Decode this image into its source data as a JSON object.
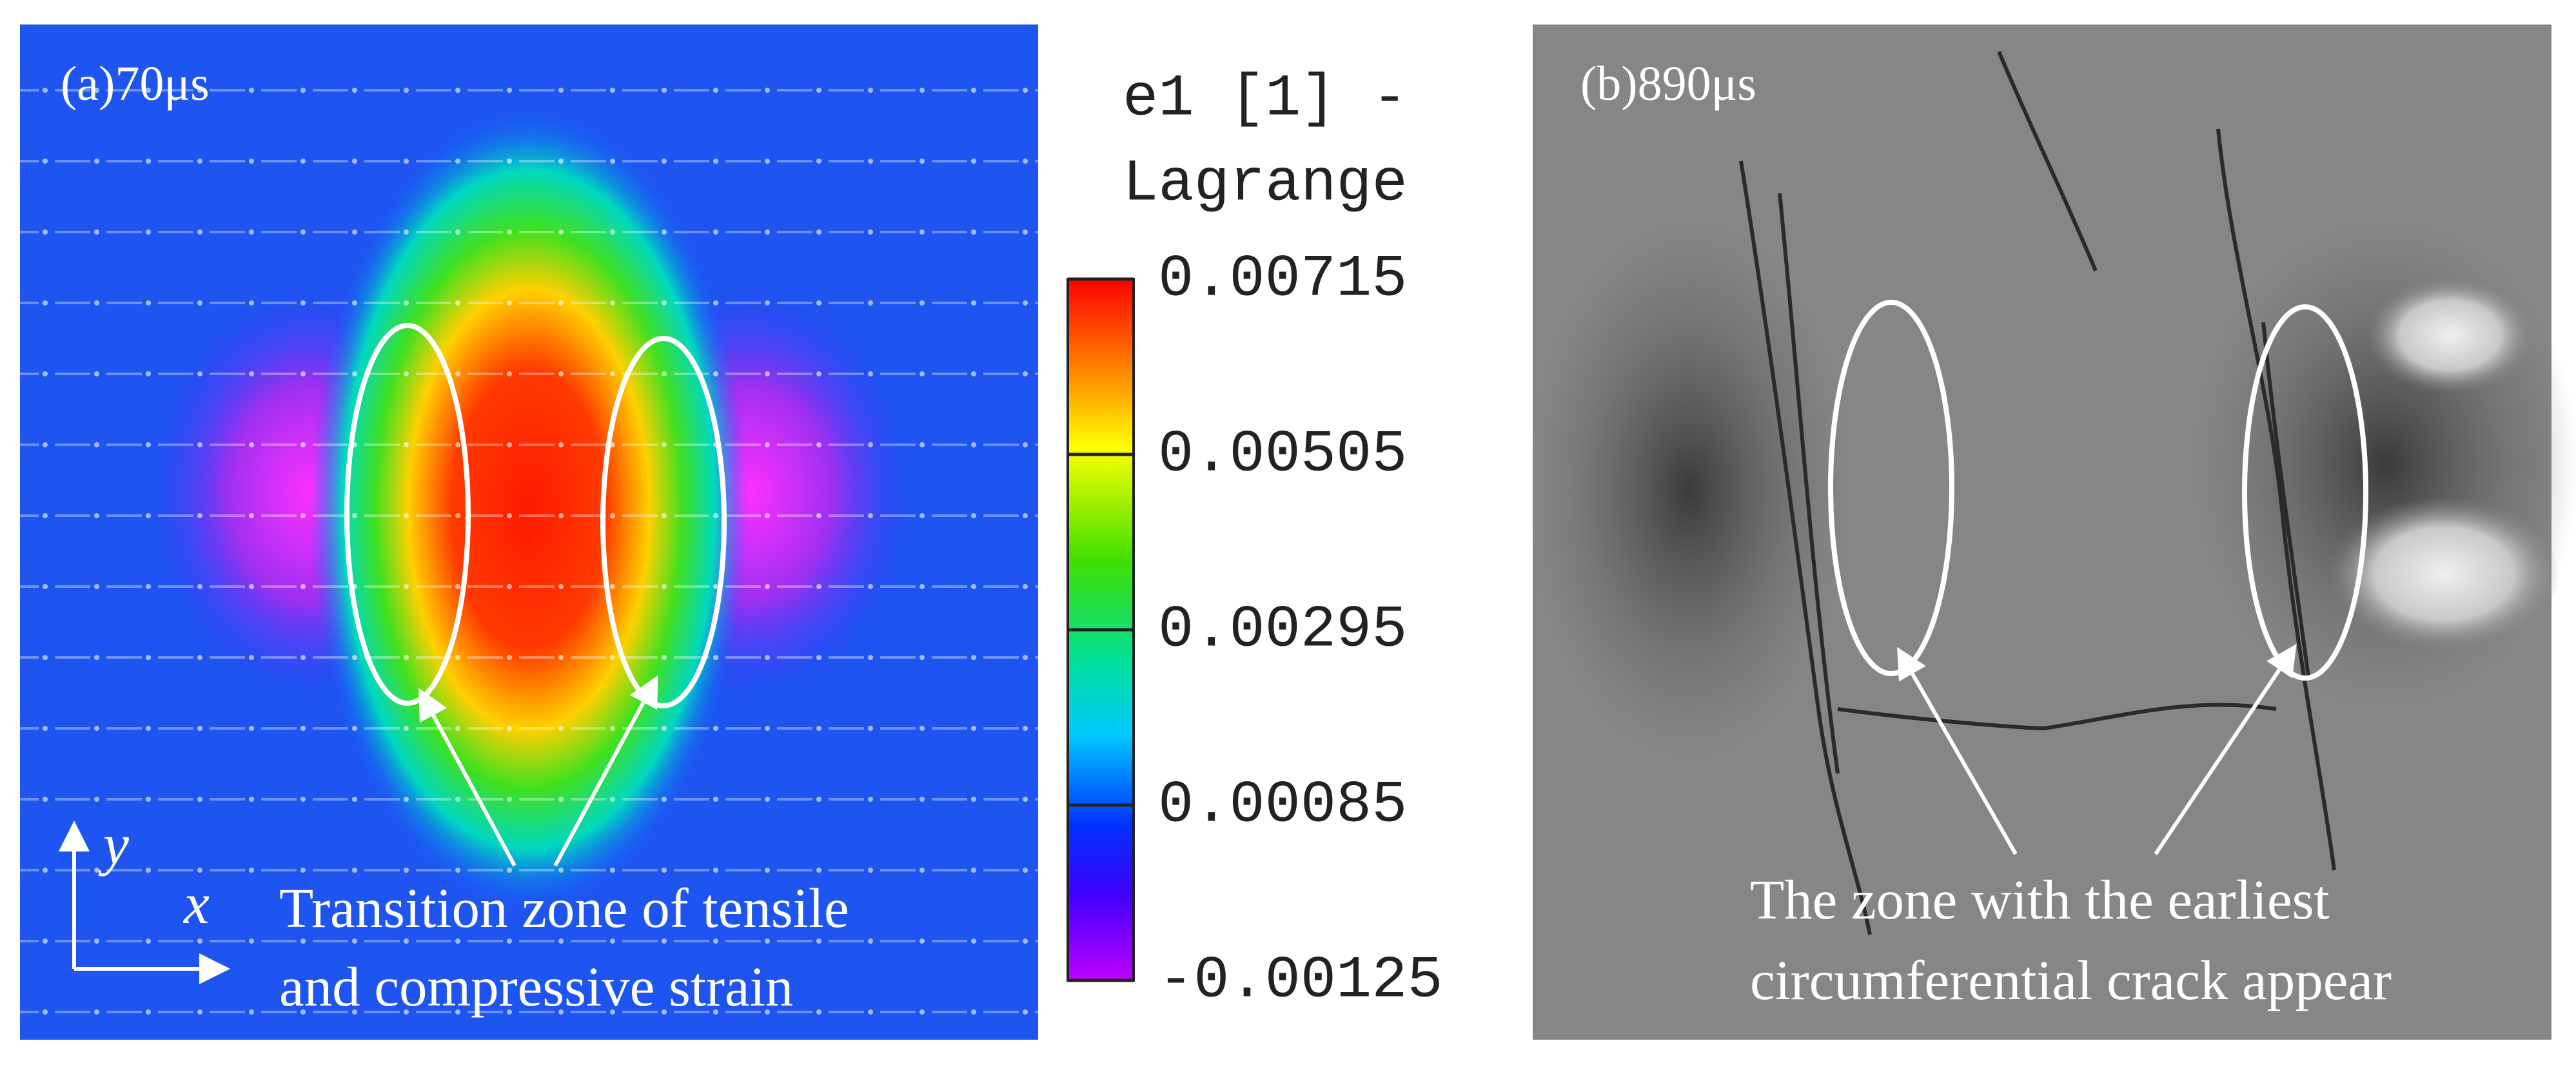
{
  "panel_a": {
    "label": "(a)70μs",
    "axis_y": "y",
    "axis_x": "x",
    "annotation": [
      "Transition zone of tensile",
      "and compressive strain"
    ]
  },
  "colorbar": {
    "title": [
      "e1 [1] -",
      "Lagrange"
    ],
    "lim": [
      -0.00125,
      0.00715
    ],
    "ticks": [
      0.00715,
      0.00505,
      0.00295,
      0.00085,
      -0.00125
    ]
  },
  "panel_b": {
    "label": "(b)890μs",
    "annotation": [
      "The zone with the earliest",
      "circumferential crack appear"
    ]
  }
}
